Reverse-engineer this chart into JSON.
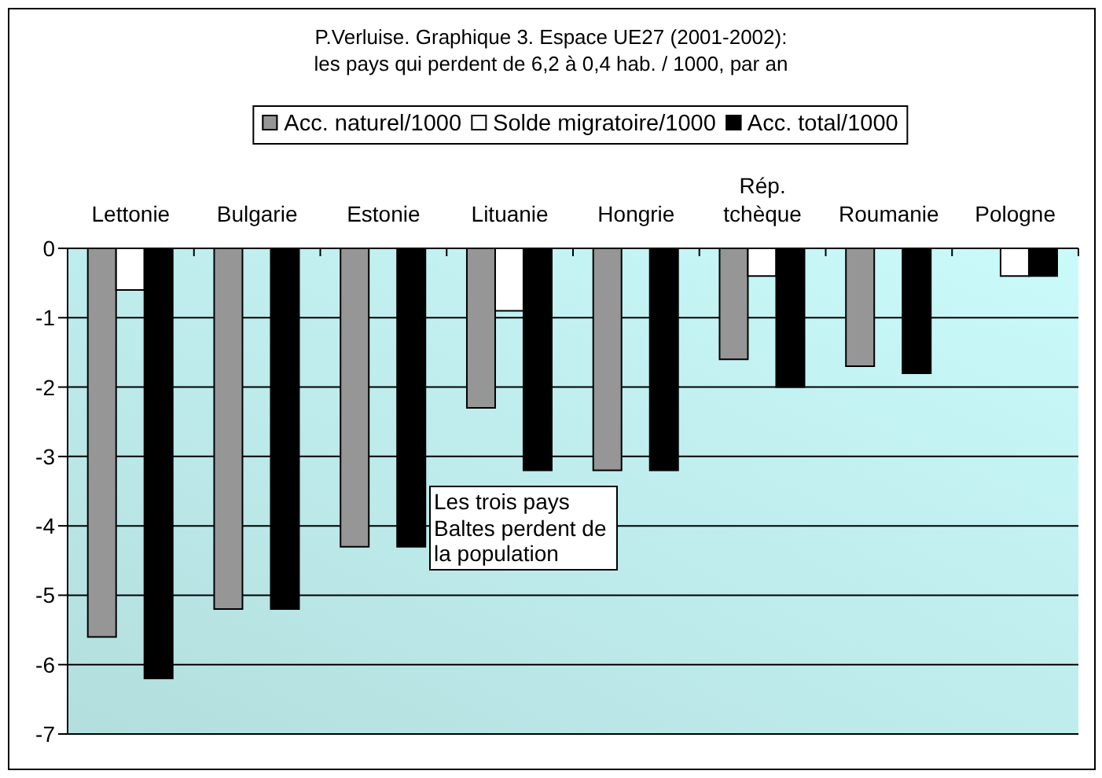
{
  "chart_data": {
    "type": "bar",
    "title": "P.Verluise. Graphique 3. Espace UE27 (2001-2002):\nles pays qui perdent de 6,2 à 0,4 hab. / 1000, par an",
    "categories": [
      "Lettonie",
      "Bulgarie",
      "Estonie",
      "Lituanie",
      "Hongrie",
      "Rép. tchèque",
      "Roumanie",
      "Pologne"
    ],
    "series": [
      {
        "name": "Acc. naturel/1000",
        "color": "#969696",
        "values": [
          -5.6,
          -5.2,
          -4.3,
          -2.3,
          -3.2,
          -1.6,
          -1.7,
          0
        ]
      },
      {
        "name": "Solde migratoire/1000",
        "color": "#ffffff",
        "values": [
          -0.6,
          0,
          0,
          -0.9,
          0,
          -0.4,
          0,
          -0.4
        ]
      },
      {
        "name": "Acc. total/1000",
        "color": "#000000",
        "values": [
          -6.2,
          -5.2,
          -4.3,
          -3.2,
          -3.2,
          -2.0,
          -1.8,
          -0.4
        ]
      }
    ],
    "ylim": [
      -7,
      0
    ],
    "yticks": [
      -7,
      -6,
      -5,
      -4,
      -3,
      -2,
      -1,
      0
    ],
    "grid": "y",
    "legend": "top",
    "annotations": [
      "Les trois pays Baltes perdent de la population"
    ]
  }
}
